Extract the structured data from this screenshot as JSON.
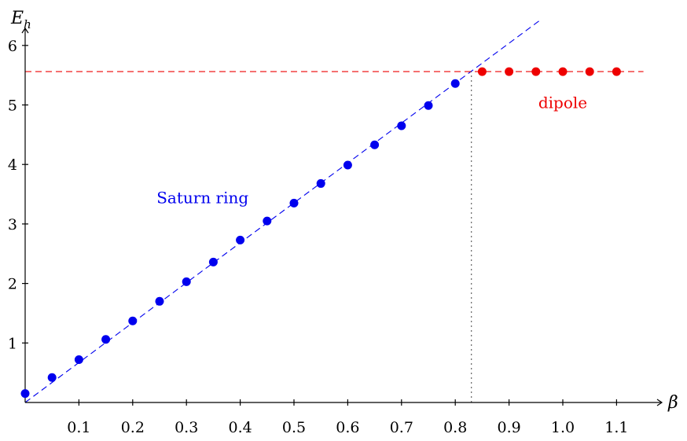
{
  "chart_data": {
    "type": "scatter",
    "title": "",
    "xlabel": "β",
    "ylabel_main": "E",
    "ylabel_sub": "h",
    "xlim": [
      0,
      1.15
    ],
    "ylim": [
      0,
      6.25
    ],
    "x_ticks": [
      0.1,
      0.2,
      0.3,
      0.4,
      0.5,
      0.6,
      0.7,
      0.8,
      0.9,
      1.0,
      1.1
    ],
    "x_tick_labels": [
      "0.1",
      "0.2",
      "0.3",
      "0.4",
      "0.5",
      "0.6",
      "0.7",
      "0.8",
      "0.9",
      "1.0",
      "1.1"
    ],
    "y_ticks": [
      1,
      2,
      3,
      4,
      5,
      6
    ],
    "y_tick_labels": [
      "1",
      "2",
      "3",
      "4",
      "5",
      "6"
    ],
    "grid": false,
    "series": [
      {
        "name": "Saturn ring",
        "color": "#0000ee",
        "x": [
          0.0,
          0.05,
          0.1,
          0.15,
          0.2,
          0.25,
          0.3,
          0.35,
          0.4,
          0.45,
          0.5,
          0.55,
          0.6,
          0.65,
          0.7,
          0.75,
          0.8
        ],
        "y": [
          0.15,
          0.42,
          0.72,
          1.06,
          1.37,
          1.7,
          2.03,
          2.36,
          2.73,
          3.05,
          3.35,
          3.68,
          3.99,
          4.33,
          4.65,
          4.99,
          5.36
        ]
      },
      {
        "name": "dipole",
        "color": "#ee0000",
        "x": [
          0.85,
          0.9,
          0.95,
          1.0,
          1.05,
          1.1
        ],
        "y": [
          5.56,
          5.56,
          5.56,
          5.56,
          5.56,
          5.56
        ]
      }
    ],
    "reference_lines": [
      {
        "kind": "line",
        "color": "#0000ee",
        "dash": "dashed",
        "from": [
          0.0,
          0.0
        ],
        "to": [
          0.96,
          6.44
        ]
      },
      {
        "kind": "line",
        "color": "#ee0000",
        "dash": "dashed",
        "from": [
          0.0,
          5.56
        ],
        "to": [
          1.15,
          5.56
        ]
      },
      {
        "kind": "line",
        "color": "#555555",
        "dash": "dotted",
        "from": [
          0.83,
          0.0
        ],
        "to": [
          0.83,
          5.56
        ]
      }
    ],
    "annotations": [
      {
        "text": "Saturn ring",
        "color": "#0000ee",
        "x": 0.33,
        "y": 3.35
      },
      {
        "text": "dipole",
        "color": "#ee0000",
        "x": 1.0,
        "y": 4.95
      }
    ]
  }
}
